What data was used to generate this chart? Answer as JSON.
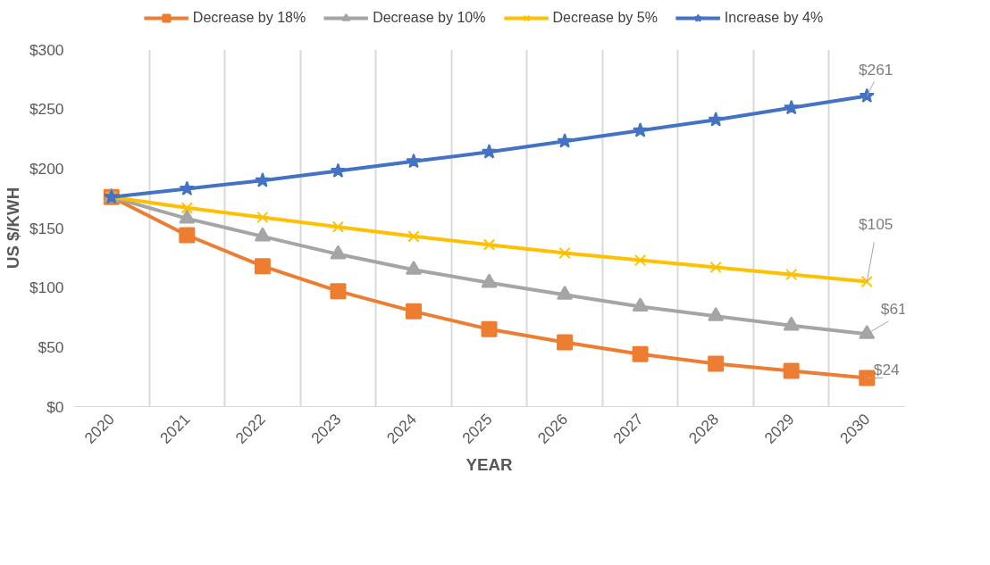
{
  "chart_data": {
    "type": "line",
    "xlabel": "YEAR",
    "ylabel": "US $/KWH",
    "categories": [
      "2020",
      "2021",
      "2022",
      "2023",
      "2024",
      "2025",
      "2026",
      "2027",
      "2028",
      "2029",
      "2030"
    ],
    "ylim": [
      0,
      300
    ],
    "yticks": [
      {
        "value": 0,
        "label": "$0"
      },
      {
        "value": 50,
        "label": "$50"
      },
      {
        "value": 100,
        "label": "$100"
      },
      {
        "value": 150,
        "label": "$150"
      },
      {
        "value": 200,
        "label": "$200"
      },
      {
        "value": 250,
        "label": "$250"
      },
      {
        "value": 300,
        "label": "$300"
      }
    ],
    "grid": "x",
    "legend": "top",
    "line_style": "solid",
    "series": [
      {
        "name": "Decrease by 18%",
        "color": "#ed7d31",
        "marker": "square",
        "values": [
          176,
          144,
          118,
          97,
          80,
          65,
          54,
          44,
          36,
          30,
          24
        ],
        "value_labels": [
          null,
          null,
          null,
          null,
          null,
          null,
          null,
          null,
          null,
          null,
          "$24"
        ]
      },
      {
        "name": "Decrease by 10%",
        "color": "#a5a5a5",
        "marker": "triangle",
        "values": [
          176,
          158,
          143,
          128,
          115,
          104,
          94,
          84,
          76,
          68,
          61
        ],
        "value_labels": [
          null,
          null,
          null,
          null,
          null,
          null,
          null,
          null,
          null,
          null,
          "$61"
        ]
      },
      {
        "name": "Decrease by 5%",
        "color": "#ffc000",
        "marker": "cross",
        "values": [
          176,
          167,
          159,
          151,
          143,
          136,
          129,
          123,
          117,
          111,
          105
        ],
        "value_labels": [
          null,
          null,
          null,
          null,
          null,
          null,
          null,
          null,
          null,
          null,
          "$105"
        ]
      },
      {
        "name": "Increase by 4%",
        "color": "#4472c4",
        "marker": "star",
        "values": [
          176,
          183,
          190,
          198,
          206,
          214,
          223,
          232,
          241,
          251,
          261
        ],
        "value_labels": [
          null,
          null,
          null,
          null,
          null,
          null,
          null,
          null,
          null,
          null,
          "$261"
        ]
      }
    ]
  }
}
